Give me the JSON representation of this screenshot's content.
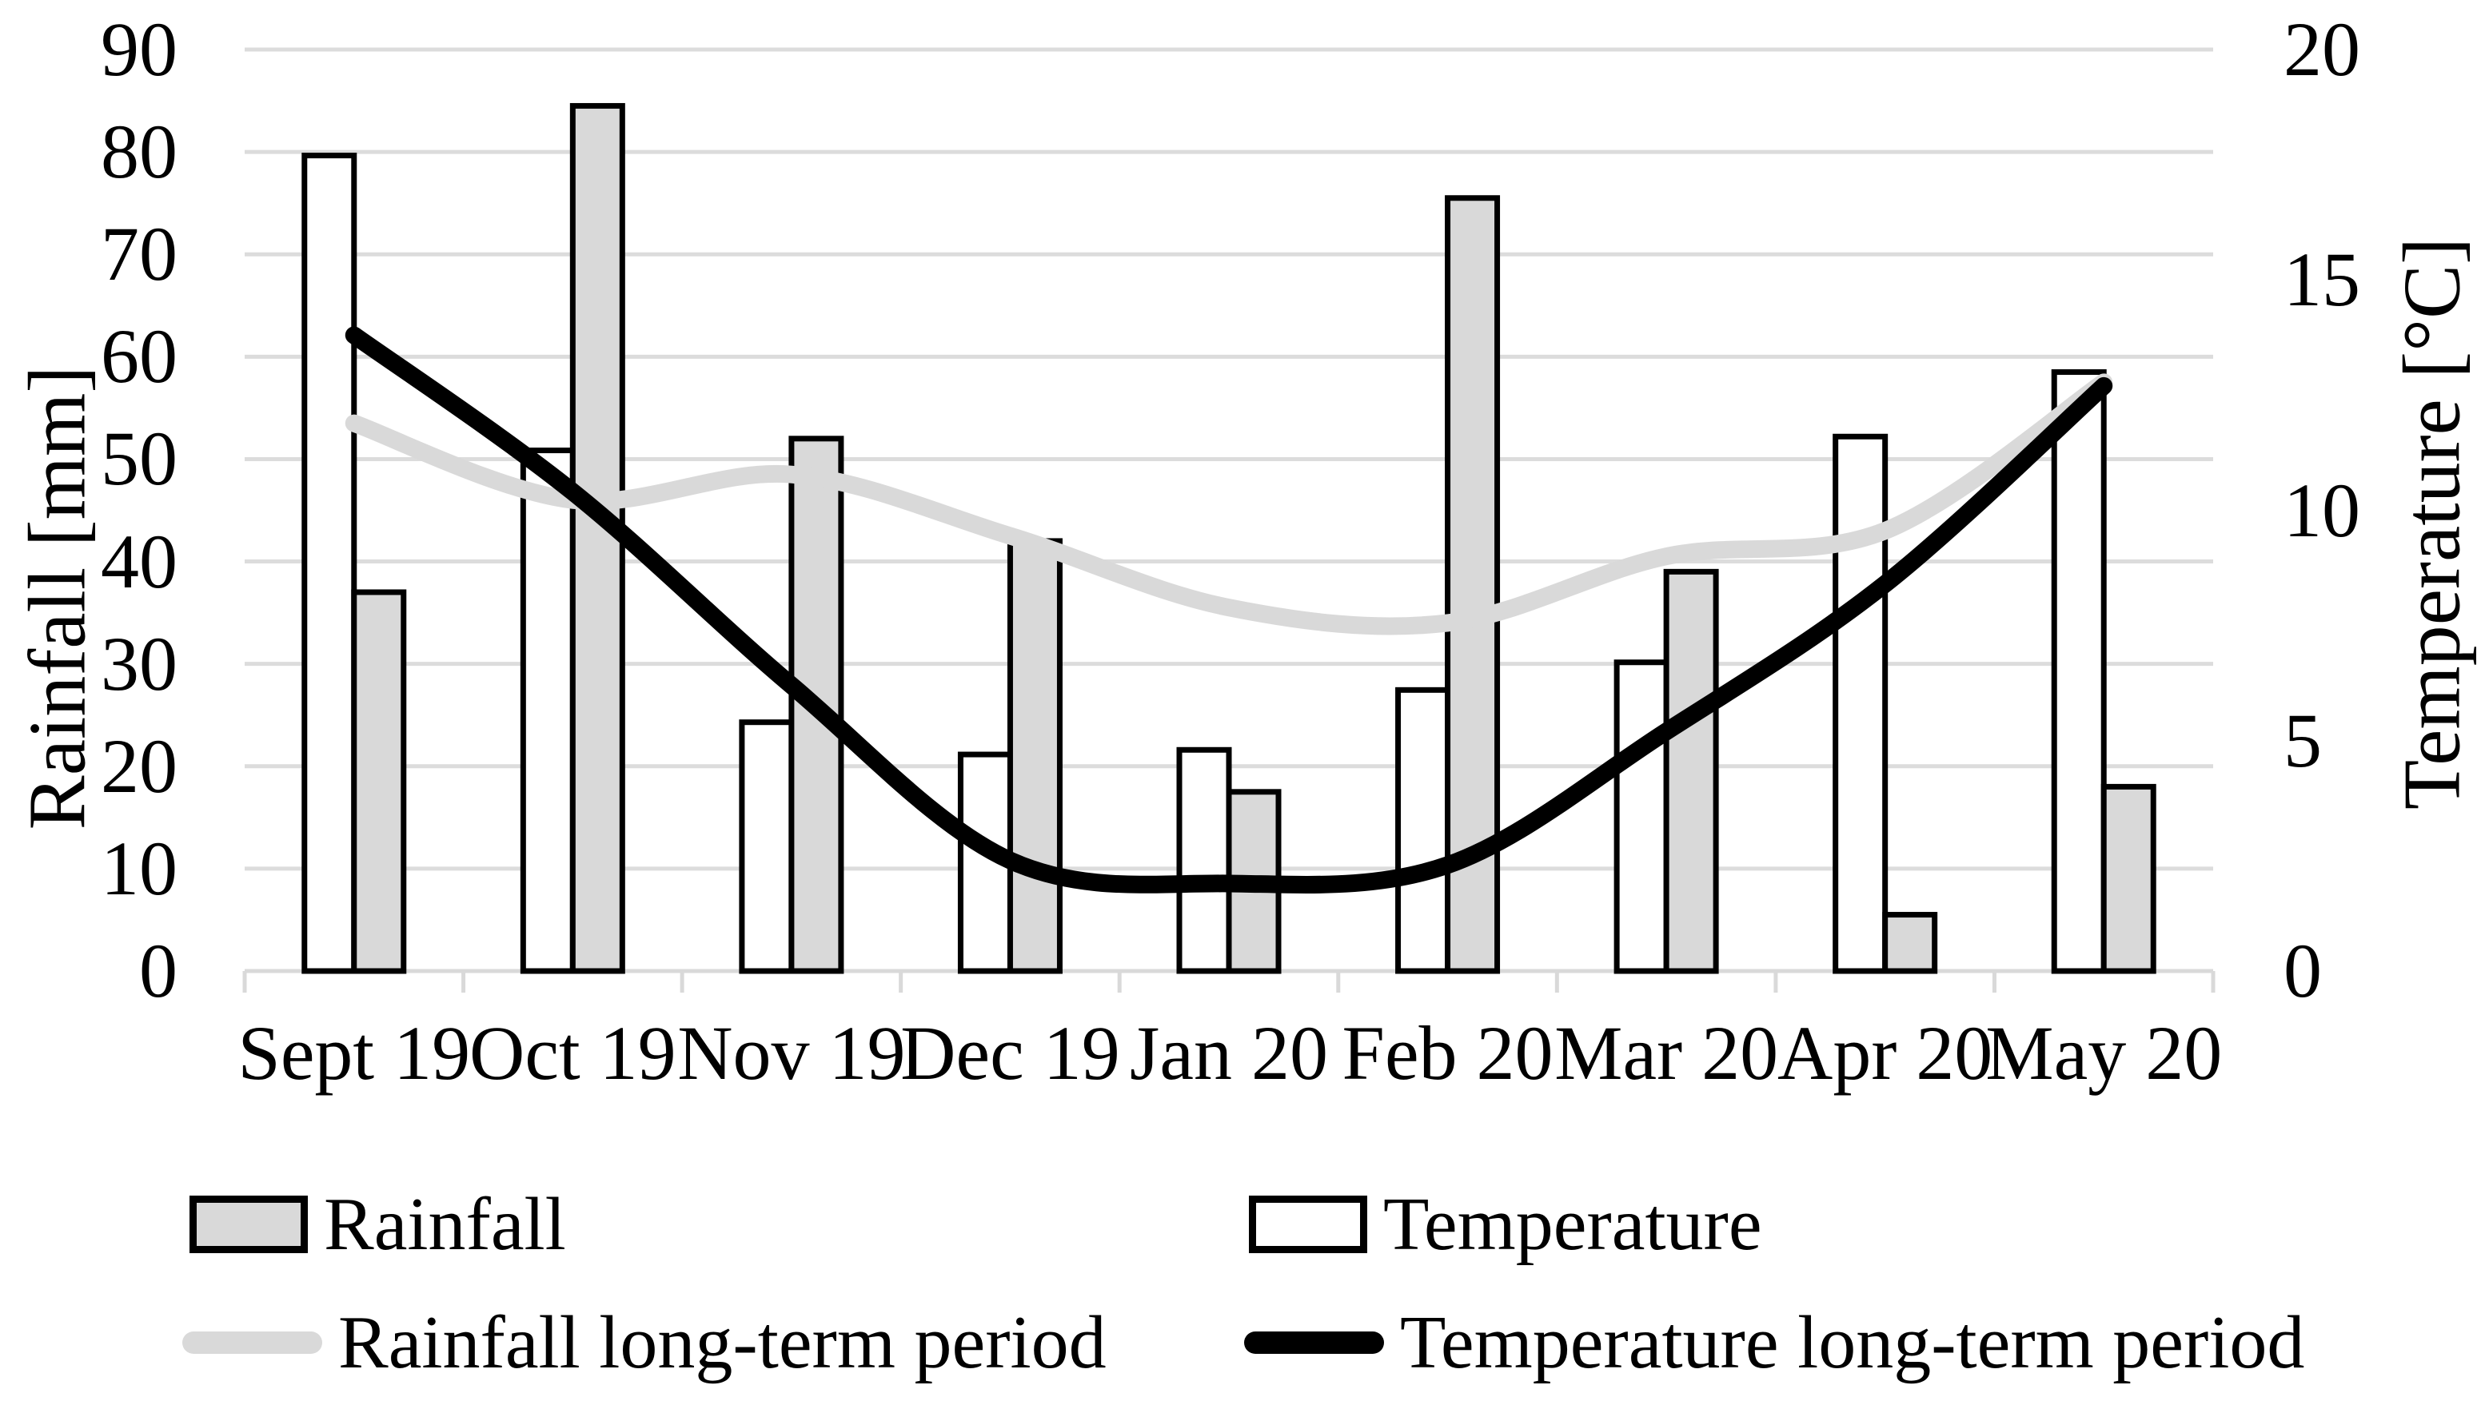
{
  "chart_data": {
    "type": "bar",
    "subtype": "combo-bar-line-dual-axis",
    "categories": [
      "Sept 19",
      "Oct 19",
      "Nov 19",
      "Dec 19",
      "Jan 20",
      "Feb 20",
      "Mar 20",
      "Apr 20",
      "May 20"
    ],
    "series": [
      {
        "name": "Rainfall",
        "type": "bar",
        "axis": "left",
        "unit": "mm",
        "color": "#d9d9d9",
        "values": [
          37,
          84.5,
          52,
          42,
          17.5,
          75.5,
          39,
          5.5,
          18
        ]
      },
      {
        "name": "Temperature",
        "type": "bar",
        "axis": "right",
        "unit": "°C",
        "color": "#ffffff",
        "values": [
          17.7,
          11.3,
          5.4,
          4.7,
          4.8,
          6.1,
          6.7,
          11.6,
          13.0
        ]
      },
      {
        "name": "Rainfall long-term period",
        "type": "line",
        "axis": "left",
        "unit": "mm",
        "color": "#d9d9d9",
        "values": [
          53.5,
          46,
          48.5,
          42.5,
          35.5,
          34,
          40.5,
          43,
          57.5
        ]
      },
      {
        "name": "Temperature long-term period",
        "type": "line",
        "axis": "right",
        "unit": "°C",
        "color": "#000000",
        "values": [
          13.8,
          10.4,
          6.2,
          2.4,
          1.9,
          2.3,
          5.2,
          8.4,
          12.7
        ]
      }
    ],
    "left_axis": {
      "title": "Rainfall [mm]",
      "min": 0,
      "max": 90,
      "step": 10,
      "tick_values": [
        90,
        80,
        70,
        60,
        50,
        40,
        30,
        20,
        10,
        0
      ]
    },
    "right_axis": {
      "title": "Temperature [°C]",
      "min": 0,
      "max": 20,
      "step": 5,
      "tick_values": [
        20,
        15,
        10,
        5,
        0
      ]
    },
    "grid": true,
    "legend_position": "bottom",
    "colors": {
      "grid": "#dcdcdc",
      "axis_line": "#d9d9d9",
      "bar_outline": "#000000",
      "gray_fill": "#d9d9d9",
      "white_fill": "#ffffff",
      "black": "#000000"
    }
  }
}
